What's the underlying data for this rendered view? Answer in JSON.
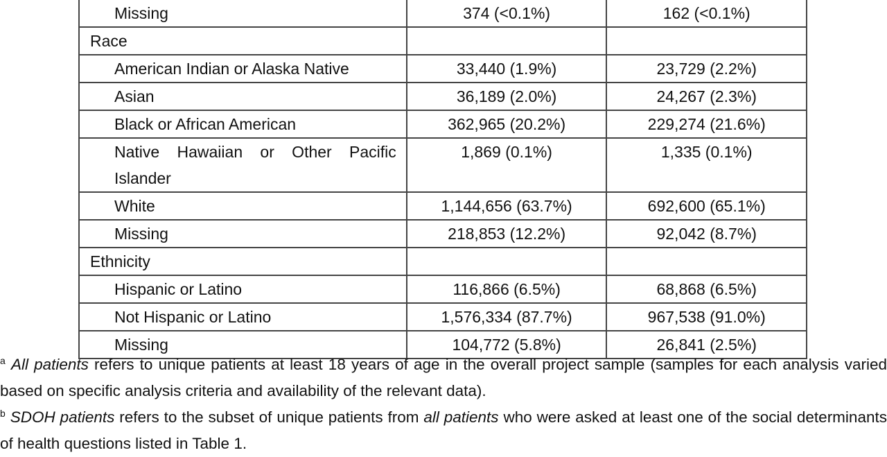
{
  "table": {
    "top_rows": [
      [
        "Missing",
        "374 (<0.1%)",
        "162 (<0.1%)"
      ]
    ],
    "sections": [
      {
        "title": "Race",
        "rows": [
          [
            "American Indian or Alaska Native",
            "33,440 (1.9%)",
            "23,729 (2.2%)"
          ],
          [
            "Asian",
            "36,189 (2.0%)",
            "24,267 (2.3%)"
          ],
          [
            "Black or African American",
            "362,965 (20.2%)",
            "229,274 (21.6%)"
          ],
          [
            "Native Hawaiian or Other Pacific Islander",
            "1,869 (0.1%)",
            "1,335 (0.1%)"
          ],
          [
            "White",
            "1,144,656 (63.7%)",
            "692,600 (65.1%)"
          ],
          [
            "Missing",
            "218,853 (12.2%)",
            "92,042 (8.7%)"
          ]
        ]
      },
      {
        "title": "Ethnicity",
        "rows": [
          [
            "Hispanic or Latino",
            "116,866 (6.5%)",
            "68,868 (6.5%)"
          ],
          [
            "Not Hispanic or Latino",
            "1,576,334 (87.7%)",
            "967,538 (91.0%)"
          ],
          [
            "Missing",
            "104,772 (5.8%)",
            "26,841 (2.5%)"
          ]
        ]
      }
    ]
  },
  "footnotes": [
    {
      "marker": "a",
      "italic": "All patients",
      "text": "refers to unique patients at least 18 years of age in the overall project sample (samples for each analysis varied based on specific analysis criteria and availability of the relevant data)."
    },
    {
      "marker": "b",
      "italic": "SDOH patients",
      "text": "refers to the subset of unique patients from",
      "italic2": "all patients",
      "text2": "who were asked at least one of the social determinants of health questions listed in Table 1."
    }
  ]
}
